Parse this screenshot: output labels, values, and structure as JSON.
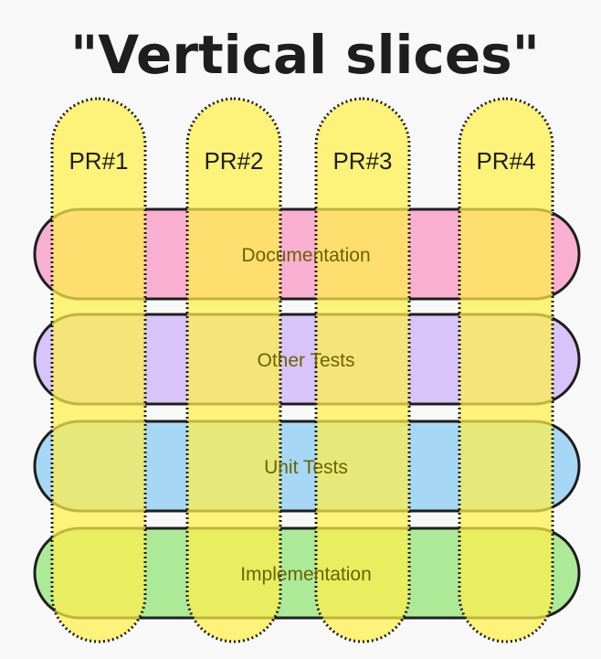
{
  "title": "\"Vertical slices\"",
  "layers": [
    {
      "label": "Documentation",
      "color": "#f9b0d0"
    },
    {
      "label": "Other Tests",
      "color": "#d8c4f8"
    },
    {
      "label": "Unit Tests",
      "color": "#a6d8f5"
    },
    {
      "label": "Implementation",
      "color": "#acea98"
    }
  ],
  "slices": [
    {
      "label": "PR#1"
    },
    {
      "label": "PR#2"
    },
    {
      "label": "PR#3"
    },
    {
      "label": "PR#4"
    }
  ],
  "colors": {
    "slice_fill": "#fff04a",
    "layer_outline": "#1e1e1e",
    "layer_text": "#6b6300",
    "title": "#1e1e1e",
    "background": "#f8f8f8"
  }
}
